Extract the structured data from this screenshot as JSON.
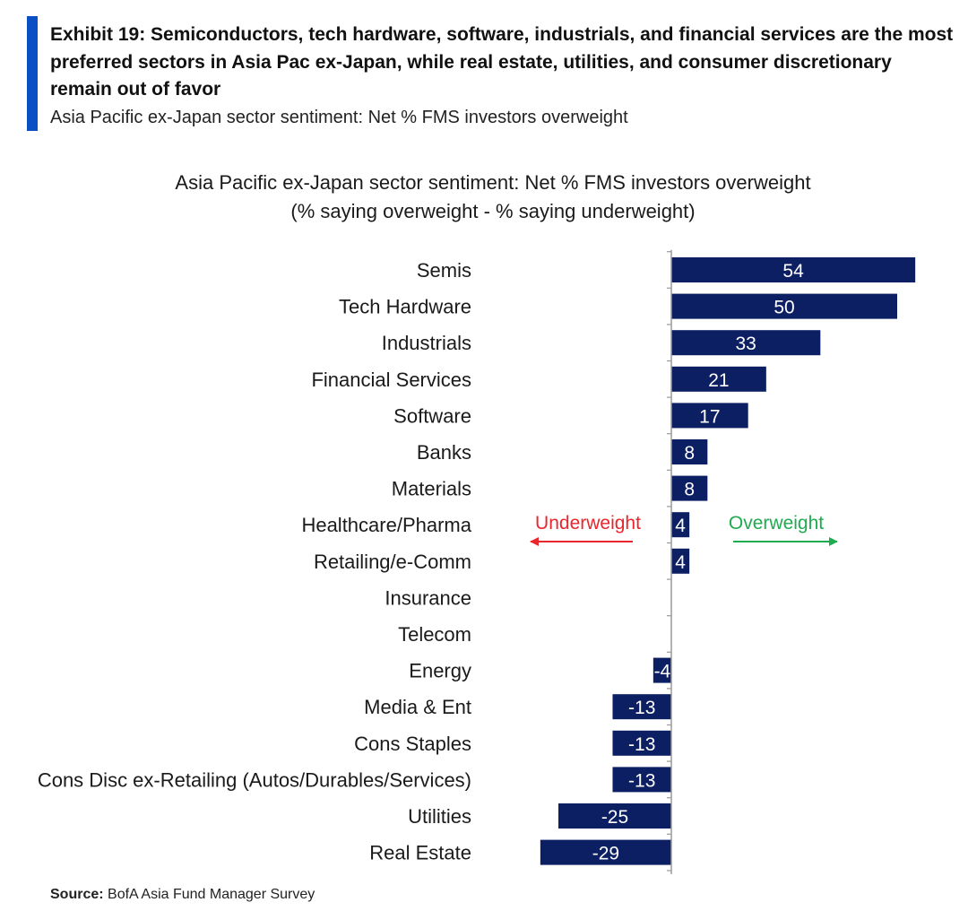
{
  "exhibit": {
    "title": "Exhibit 19: Semiconductors, tech hardware, software, industrials, and financial services are the most preferred sectors in Asia Pac ex-Japan, while real estate, utilities, and consumer discretionary remain out of favor",
    "subtitle": "Asia Pacific ex-Japan sector sentiment: Net % FMS investors overweight"
  },
  "colors": {
    "accent": "#0b4fc4",
    "bar": "#0c1f63",
    "underweight": "#e8262c",
    "overweight": "#1fab4f"
  },
  "chart_data": {
    "type": "bar",
    "orientation": "horizontal",
    "title": "Asia Pacific ex-Japan sector sentiment: Net % FMS investors overweight",
    "subtitle": "(% saying overweight - % saying underweight)",
    "categories": [
      "Semis",
      "Tech Hardware",
      "Industrials",
      "Financial Services",
      "Software",
      "Banks",
      "Materials",
      "Healthcare/Pharma",
      "Retailing/e-Comm",
      "Insurance",
      "Telecom",
      "Energy",
      "Media & Ent",
      "Cons Staples",
      "Cons Disc ex-Retailing (Autos/Durables/Services)",
      "Utilities",
      "Real Estate"
    ],
    "values": [
      54,
      50,
      33,
      21,
      17,
      8,
      8,
      4,
      4,
      0,
      0,
      -4,
      -13,
      -13,
      -13,
      -25,
      -29
    ],
    "data_labels": [
      "54",
      "50",
      "33",
      "21",
      "17",
      "8",
      "8",
      "4",
      "4",
      "",
      "",
      "-4",
      "-13",
      "-13",
      "-13",
      "-25",
      "-29"
    ],
    "annotations": {
      "underweight": "Underweight",
      "overweight": "Overweight"
    },
    "xlim": [
      -29,
      54
    ],
    "grid": false,
    "legend": "none"
  },
  "source": {
    "label": "Source:",
    "text": "BofA Asia Fund Manager Survey"
  }
}
